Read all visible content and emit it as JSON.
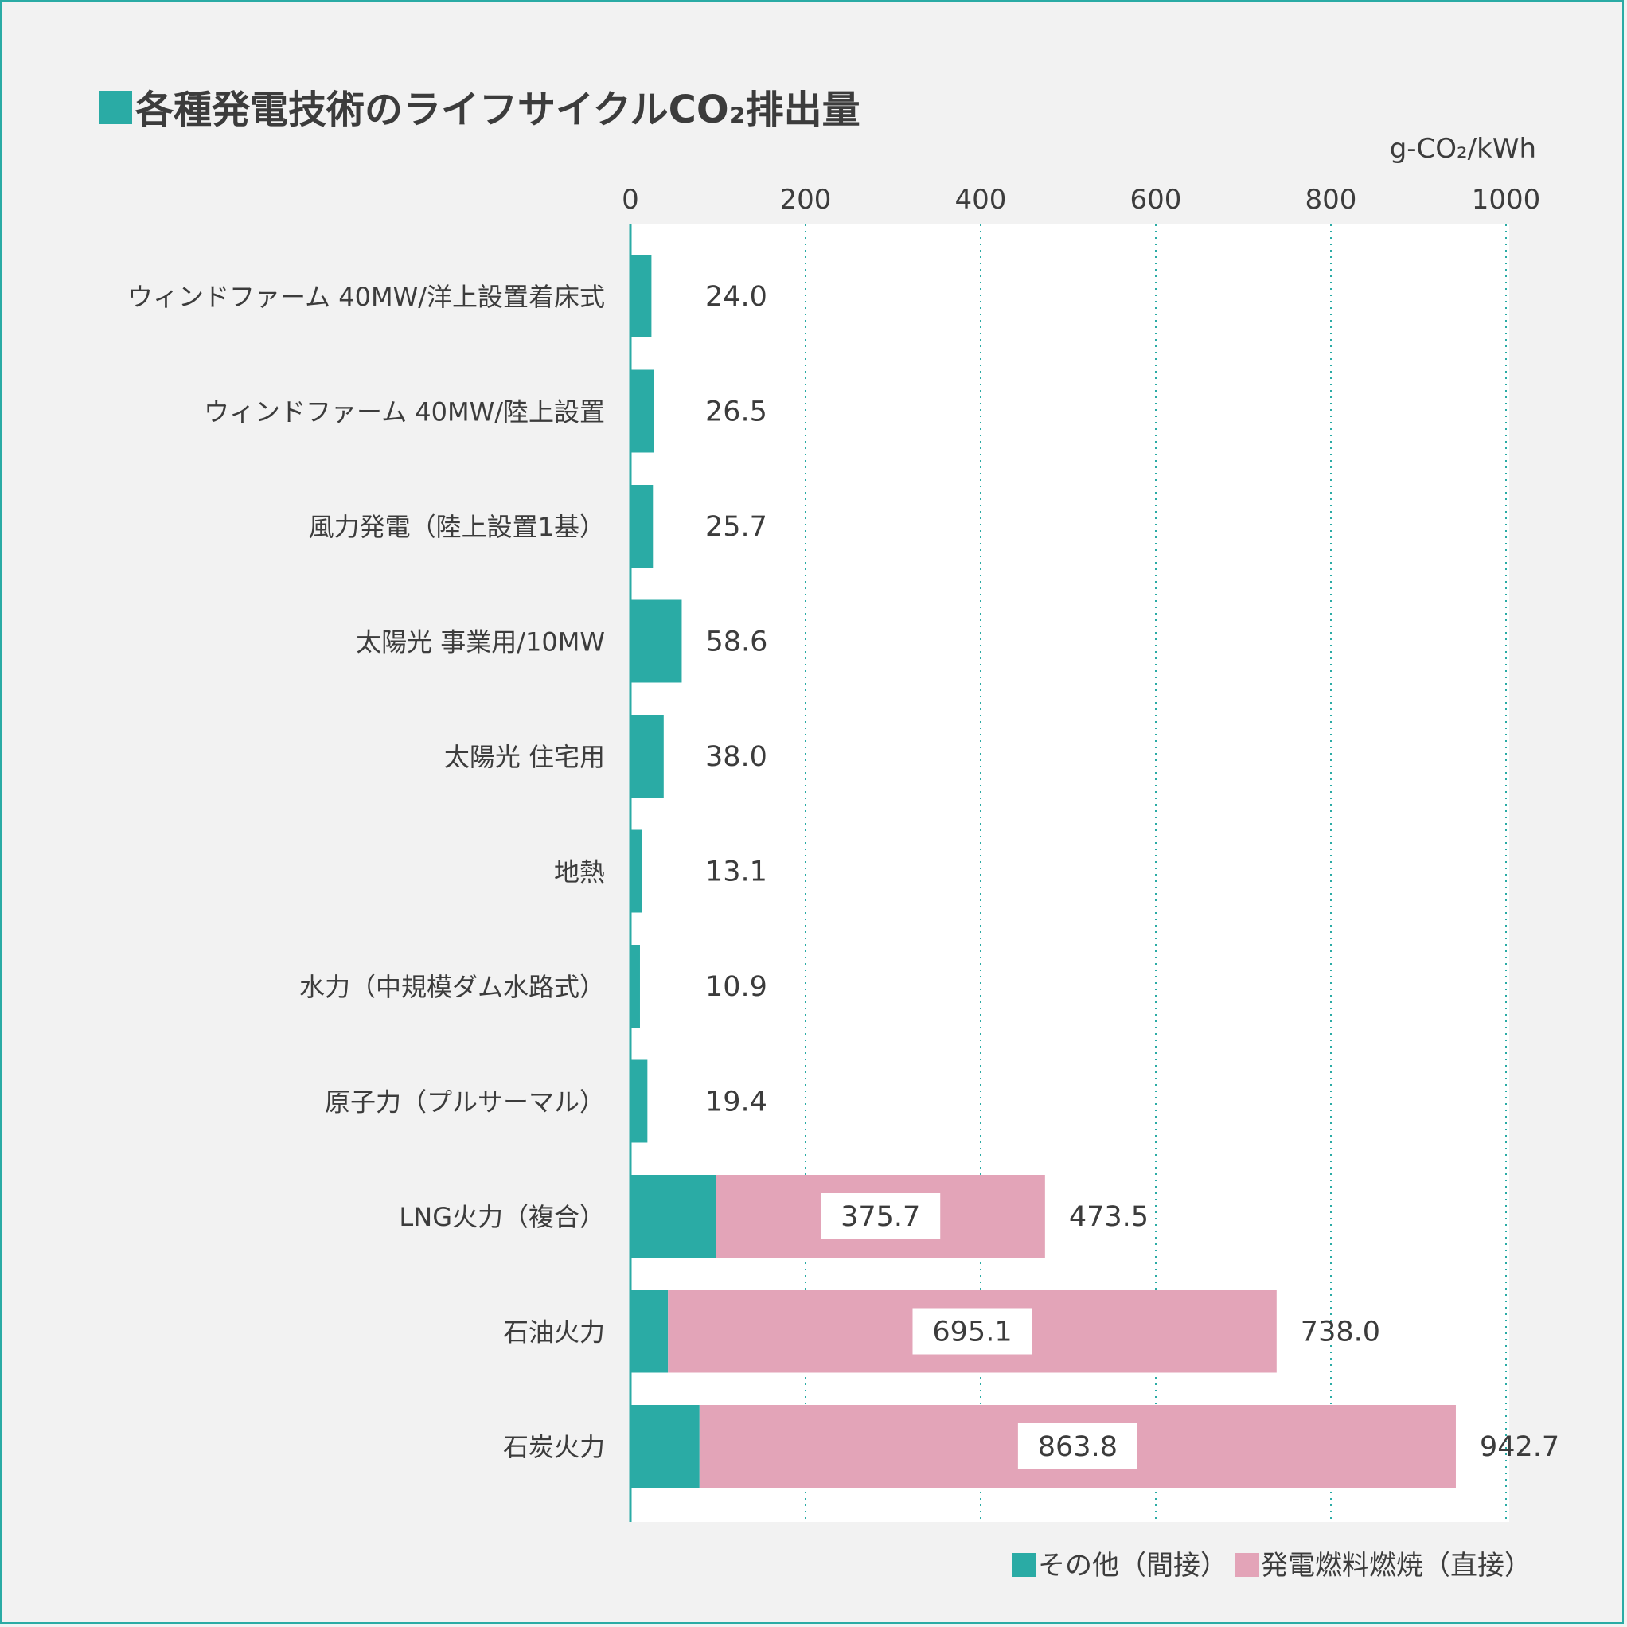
{
  "chart_data": {
    "type": "bar",
    "orientation": "horizontal",
    "stacked": true,
    "title": "各種発電技術のライフサイクルCO₂排出量",
    "unit_label": "g-CO₂/kWh",
    "xlim": [
      0,
      1000
    ],
    "x_ticks": [
      0,
      200,
      400,
      600,
      800,
      1000
    ],
    "grid": true,
    "legend_position": "bottom-right",
    "categories": [
      "ウィンドファーム 40MW/洋上設置着床式",
      "ウィンドファーム 40MW/陸上設置",
      "風力発電（陸上設置1基）",
      "太陽光 事業用/10MW",
      "太陽光 住宅用",
      "地熱",
      "水力（中規模ダム水路式）",
      "原子力（プルサーマル）",
      "LNG火力（複合）",
      "石油火力",
      "石炭火力"
    ],
    "series": [
      {
        "name": "その他（間接）",
        "color": "#2aaba5",
        "values": [
          24.0,
          26.5,
          25.7,
          58.6,
          38.0,
          13.1,
          10.9,
          19.4,
          97.8,
          42.9,
          78.9
        ]
      },
      {
        "name": "発電燃料燃焼（直接）",
        "color": "#e3a4b8",
        "values": [
          0,
          0,
          0,
          0,
          0,
          0,
          0,
          0,
          375.7,
          695.1,
          863.8
        ],
        "data_labels": [
          "",
          "",
          "",
          "",
          "",
          "",
          "",
          "",
          "375.7",
          "695.1",
          "863.8"
        ]
      }
    ],
    "total_labels": [
      "24.0",
      "26.5",
      "25.7",
      "58.6",
      "38.0",
      "13.1",
      "10.9",
      "19.4",
      "473.5",
      "738.0",
      "942.7"
    ]
  }
}
